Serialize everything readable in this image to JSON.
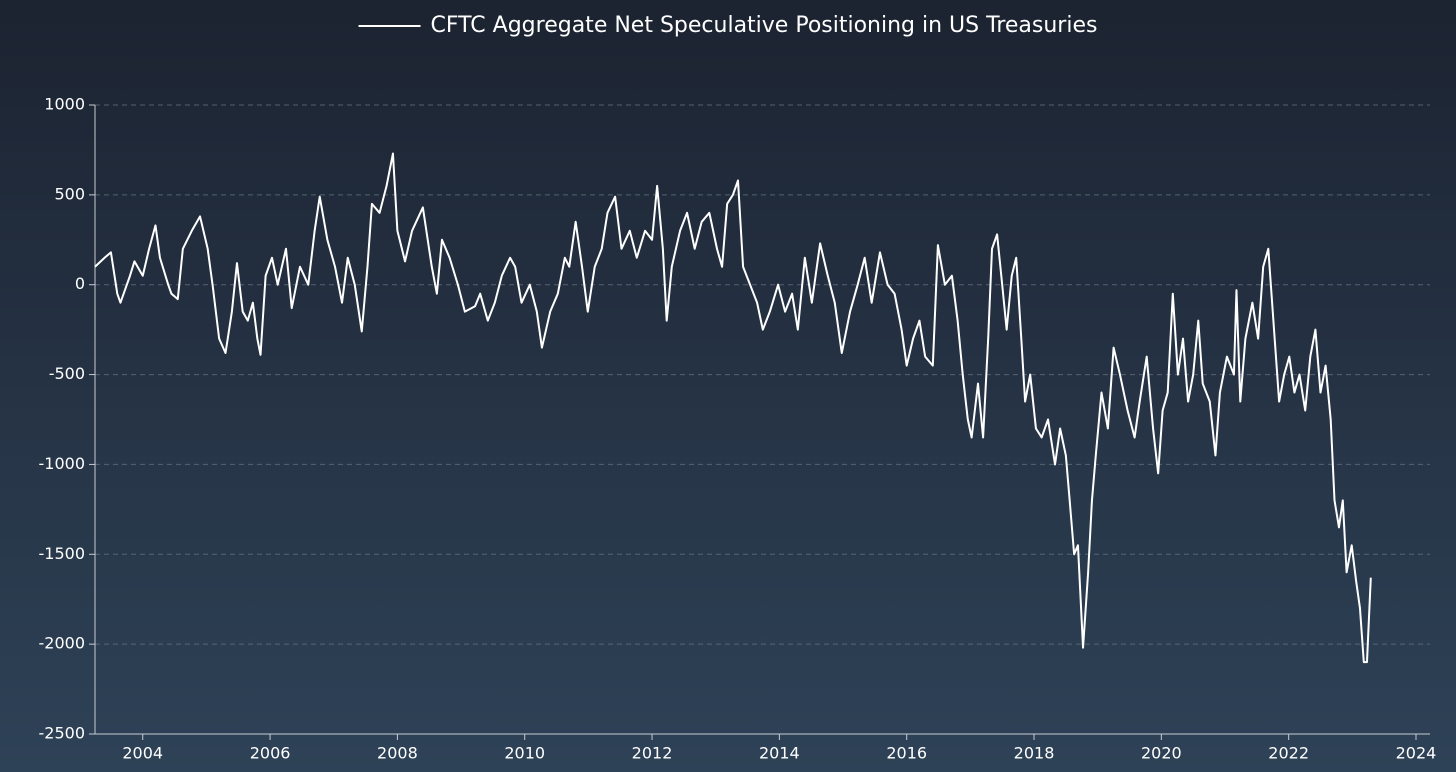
{
  "chart_data": {
    "type": "line",
    "x": [
      2003.25,
      2003.4,
      2003.5,
      2003.6,
      2003.65,
      2003.8,
      2003.87,
      2004.0,
      2004.1,
      2004.2,
      2004.27,
      2004.4,
      2004.45,
      2004.55,
      2004.63,
      2004.77,
      2004.9,
      2005.02,
      2005.1,
      2005.2,
      2005.3,
      2005.4,
      2005.48,
      2005.57,
      2005.65,
      2005.73,
      2005.8,
      2005.85,
      2005.93,
      2006.03,
      2006.12,
      2006.25,
      2006.34,
      2006.47,
      2006.6,
      2006.7,
      2006.78,
      2006.9,
      2007.02,
      2007.13,
      2007.22,
      2007.33,
      2007.44,
      2007.53,
      2007.6,
      2007.72,
      2007.83,
      2007.93,
      2008.0,
      2008.12,
      2008.23,
      2008.4,
      2008.54,
      2008.62,
      2008.7,
      2008.82,
      2008.95,
      2009.06,
      2009.22,
      2009.3,
      2009.42,
      2009.53,
      2009.64,
      2009.77,
      2009.85,
      2009.95,
      2010.08,
      2010.19,
      2010.27,
      2010.4,
      2010.52,
      2010.63,
      2010.7,
      2010.8,
      2010.9,
      2010.99,
      2011.1,
      2011.21,
      2011.3,
      2011.42,
      2011.52,
      2011.65,
      2011.76,
      2011.89,
      2012.0,
      2012.08,
      2012.17,
      2012.23,
      2012.31,
      2012.44,
      2012.55,
      2012.67,
      2012.78,
      2012.9,
      2013.02,
      2013.1,
      2013.18,
      2013.27,
      2013.35,
      2013.43,
      2013.54,
      2013.65,
      2013.74,
      2013.85,
      2013.98,
      2014.09,
      2014.2,
      2014.29,
      2014.4,
      2014.51,
      2014.64,
      2014.76,
      2014.87,
      2014.98,
      2015.11,
      2015.23,
      2015.34,
      2015.45,
      2015.58,
      2015.7,
      2015.81,
      2015.92,
      2016.0,
      2016.1,
      2016.2,
      2016.29,
      2016.41,
      2016.49,
      2016.6,
      2016.71,
      2016.8,
      2016.88,
      2016.96,
      2017.02,
      2017.12,
      2017.2,
      2017.28,
      2017.34,
      2017.42,
      2017.5,
      2017.57,
      2017.65,
      2017.72,
      2017.8,
      2017.86,
      2017.94,
      2018.03,
      2018.12,
      2018.22,
      2018.33,
      2018.41,
      2018.5,
      2018.56,
      2018.63,
      2018.69,
      2018.77,
      2018.85,
      2018.91,
      2018.97,
      2019.06,
      2019.16,
      2019.25,
      2019.35,
      2019.47,
      2019.58,
      2019.66,
      2019.77,
      2019.87,
      2019.95,
      2020.02,
      2020.1,
      2020.18,
      2020.26,
      2020.34,
      2020.42,
      2020.5,
      2020.58,
      2020.65,
      2020.76,
      2020.85,
      2020.92,
      2021.03,
      2021.14,
      2021.18,
      2021.24,
      2021.32,
      2021.43,
      2021.52,
      2021.6,
      2021.68,
      2021.76,
      2021.85,
      2021.93,
      2022.01,
      2022.09,
      2022.17,
      2022.26,
      2022.34,
      2022.42,
      2022.5,
      2022.58,
      2022.66,
      2022.72,
      2022.79,
      2022.85,
      2022.91,
      2022.99,
      2023.06,
      2023.12,
      2023.18,
      2023.23,
      2023.29
    ],
    "series": [
      {
        "name": "CFTC Aggregate Net Speculative Positioning in US Treasuries",
        "color": "#ffffff",
        "values": [
          100,
          150,
          180,
          -50,
          -100,
          50,
          130,
          50,
          200,
          330,
          150,
          0,
          -50,
          -80,
          200,
          300,
          380,
          200,
          -10,
          -300,
          -380,
          -150,
          120,
          -150,
          -200,
          -100,
          -300,
          -390,
          50,
          150,
          0,
          200,
          -130,
          100,
          0,
          300,
          490,
          250,
          100,
          -100,
          150,
          0,
          -260,
          100,
          450,
          400,
          550,
          730,
          300,
          130,
          300,
          430,
          100,
          -50,
          250,
          150,
          0,
          -150,
          -120,
          -50,
          -200,
          -100,
          50,
          150,
          100,
          -100,
          0,
          -150,
          -350,
          -150,
          -50,
          150,
          100,
          350,
          100,
          -150,
          100,
          200,
          400,
          490,
          200,
          300,
          150,
          300,
          250,
          550,
          200,
          -200,
          100,
          300,
          400,
          200,
          350,
          400,
          200,
          100,
          450,
          500,
          580,
          100,
          0,
          -100,
          -250,
          -150,
          0,
          -150,
          -50,
          -250,
          150,
          -100,
          230,
          50,
          -100,
          -380,
          -150,
          0,
          150,
          -100,
          180,
          0,
          -50,
          -250,
          -450,
          -300,
          -200,
          -400,
          -450,
          220,
          0,
          50,
          -200,
          -500,
          -750,
          -850,
          -550,
          -850,
          -300,
          200,
          280,
          0,
          -250,
          50,
          150,
          -300,
          -650,
          -500,
          -800,
          -850,
          -750,
          -1000,
          -800,
          -950,
          -1200,
          -1500,
          -1450,
          -2020,
          -1600,
          -1200,
          -950,
          -600,
          -800,
          -350,
          -500,
          -700,
          -850,
          -650,
          -400,
          -800,
          -1050,
          -700,
          -600,
          -50,
          -500,
          -300,
          -650,
          -500,
          -200,
          -550,
          -650,
          -950,
          -600,
          -400,
          -500,
          -30,
          -650,
          -300,
          -100,
          -300,
          100,
          200,
          -200,
          -650,
          -500,
          -400,
          -600,
          -500,
          -700,
          -400,
          -250,
          -600,
          -450,
          -750,
          -1200,
          -1350,
          -1200,
          -1600,
          -1450,
          -1650,
          -1800,
          -2100,
          -2100,
          -1630
        ]
      }
    ],
    "xlim": [
      2003.25,
      2024.22
    ],
    "xticks": [
      2004,
      2006,
      2008,
      2010,
      2012,
      2014,
      2016,
      2018,
      2020,
      2022,
      2024
    ],
    "ylim": [
      -2500,
      1000
    ],
    "yticks": [
      -2500,
      -2000,
      -1500,
      -1000,
      -500,
      0,
      500,
      1000
    ],
    "grid": true,
    "legend": "top"
  }
}
